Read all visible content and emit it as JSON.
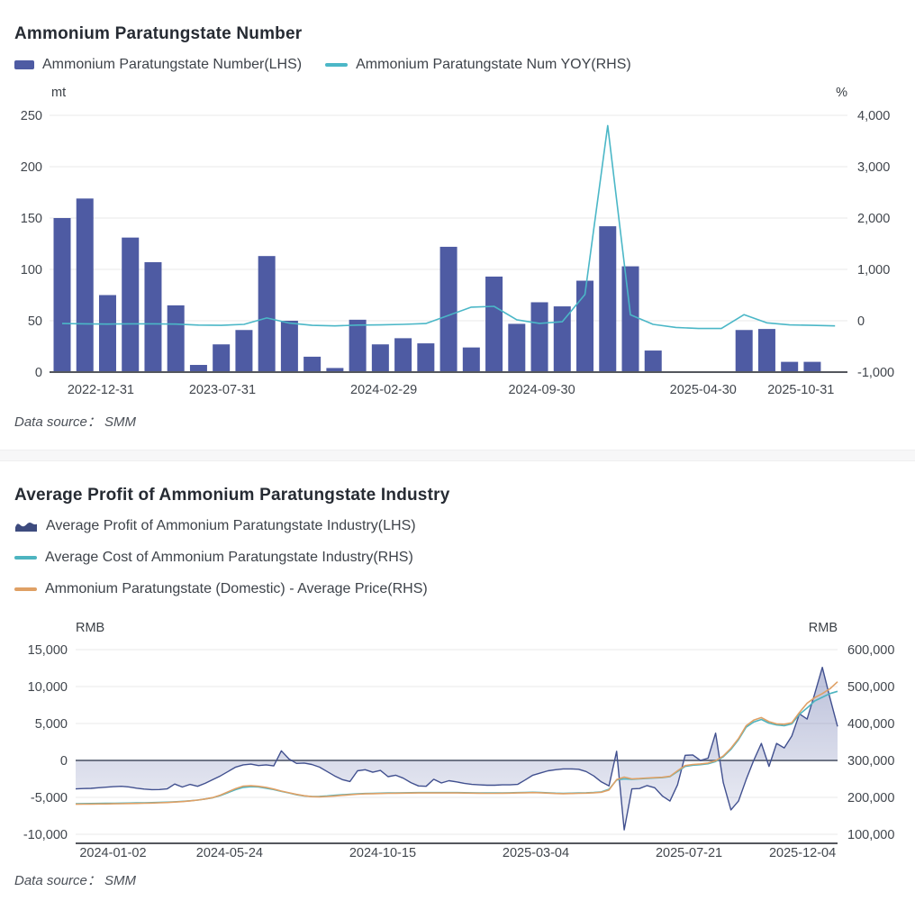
{
  "top_panel": {
    "title": "Ammonium Paratungstate Number",
    "legend": [
      {
        "label": "Ammonium Paratungstate Number(LHS)",
        "type": "bar",
        "color": "#4e5ba3"
      },
      {
        "label": "Ammonium Paratungstate Num YOY(RHS)",
        "type": "line",
        "color": "#4bb7c7"
      }
    ],
    "data_source": "Data source： SMM"
  },
  "bottom_panel": {
    "title": "Average Profit of Ammonium Paratungstate Industry",
    "legend": [
      {
        "label": "Average Profit of Ammonium Paratungstate Industry(LHS)",
        "type": "area",
        "color": "#3d4b7e"
      },
      {
        "label": "Average Cost of Ammonium Paratungstate Industry(RHS)",
        "type": "line",
        "color": "#4db4c0"
      },
      {
        "label": "Ammonium Paratungstate (Domestic) - Average Price(RHS)",
        "type": "line",
        "color": "#dfa065"
      }
    ],
    "data_source": "Data source： SMM"
  },
  "chart_data": [
    {
      "type": "bar",
      "title": "Ammonium Paratungstate Number",
      "left_axis": {
        "unit": "mt",
        "tick_values": [
          250,
          200,
          150,
          100,
          50,
          0
        ],
        "tick_labels": [
          "250",
          "200",
          "150",
          "100",
          "50",
          "0"
        ],
        "range": [
          0,
          250
        ]
      },
      "right_axis": {
        "unit": "%",
        "tick_values": [
          4000,
          3000,
          2000,
          1000,
          0,
          -1000
        ],
        "tick_labels": [
          "4,000",
          "3,000",
          "2,000",
          "1,000",
          "0",
          "-1,000"
        ],
        "range": [
          -1000,
          4000
        ]
      },
      "x_ticks": [
        {
          "i": 1.7,
          "label": "2022-12-31"
        },
        {
          "i": 7.05,
          "label": "2023-07-31"
        },
        {
          "i": 14.15,
          "label": "2024-02-29"
        },
        {
          "i": 21.1,
          "label": "2024-09-30"
        },
        {
          "i": 28.2,
          "label": "2025-04-30"
        },
        {
          "i": 32.5,
          "label": "2025-10-31"
        }
      ],
      "grid": true,
      "legend_position": "top",
      "series": [
        {
          "name": "Ammonium Paratungstate Number(LHS)",
          "type": "bar",
          "axis": "left",
          "color": "#4e5ba3",
          "values": [
            150,
            169,
            75,
            131,
            107,
            65,
            7,
            27,
            41,
            113,
            50,
            15,
            4,
            51,
            27,
            33,
            28,
            122,
            24,
            93,
            47,
            68,
            64,
            89,
            142,
            103,
            21,
            null,
            null,
            null,
            41,
            42,
            10,
            10,
            null
          ]
        },
        {
          "name": "Ammonium Paratungstate Num YOY(RHS)",
          "type": "line",
          "axis": "right",
          "color": "#4bb7c7",
          "values": [
            -55,
            -60,
            -65,
            -60,
            -60,
            -65,
            -85,
            -90,
            -70,
            55,
            -45,
            -90,
            -100,
            -85,
            -80,
            -70,
            -55,
            105,
            265,
            280,
            20,
            -50,
            -20,
            510,
            3800,
            115,
            -70,
            -130,
            -150,
            -150,
            120,
            -40,
            -80,
            -90,
            -100
          ]
        }
      ]
    },
    {
      "type": "area",
      "title": "Average Profit of Ammonium Paratungstate Industry",
      "left_axis": {
        "unit": "RMB",
        "tick_values": [
          15000,
          10000,
          5000,
          0,
          -5000,
          -10000
        ],
        "tick_labels": [
          "15,000",
          "10,000",
          "5,000",
          "0",
          "-5,000",
          "-10,000"
        ],
        "range": [
          -10000,
          15000
        ]
      },
      "right_axis": {
        "unit": "RMB",
        "tick_values": [
          600000,
          500000,
          400000,
          300000,
          200000,
          100000
        ],
        "tick_labels": [
          "600,000",
          "500,000",
          "400,000",
          "300,000",
          "200,000",
          "100,000"
        ],
        "range": [
          100000,
          600000
        ]
      },
      "x_ticks": [
        {
          "i": 4.9,
          "label": "2024-01-02"
        },
        {
          "i": 20.2,
          "label": "2024-05-24"
        },
        {
          "i": 40.3,
          "label": "2024-10-15"
        },
        {
          "i": 60.4,
          "label": "2025-03-04"
        },
        {
          "i": 80.5,
          "label": "2025-07-21"
        },
        {
          "i": 95.4,
          "label": "2025-12-04"
        }
      ],
      "grid": true,
      "legend_position": "top",
      "series": [
        {
          "name": "Average Profit of Ammonium Paratungstate Industry(LHS)",
          "type": "area",
          "axis": "left",
          "color": "#41508f",
          "values": [
            -3850,
            -3800,
            -3780,
            -3700,
            -3620,
            -3550,
            -3500,
            -3580,
            -3750,
            -3880,
            -3950,
            -3940,
            -3850,
            -3200,
            -3600,
            -3250,
            -3500,
            -3100,
            -2600,
            -2100,
            -1500,
            -900,
            -600,
            -500,
            -700,
            -600,
            -750,
            1300,
            200,
            -400,
            -350,
            -550,
            -900,
            -1500,
            -2100,
            -2600,
            -2850,
            -1400,
            -1250,
            -1600,
            -1350,
            -2200,
            -2000,
            -2400,
            -3000,
            -3450,
            -3500,
            -2550,
            -3050,
            -2750,
            -2900,
            -3100,
            -3250,
            -3300,
            -3350,
            -3350,
            -3300,
            -3300,
            -3250,
            -2650,
            -2000,
            -1700,
            -1400,
            -1250,
            -1150,
            -1150,
            -1200,
            -1500,
            -2100,
            -2900,
            -3450,
            1250,
            -9400,
            -3850,
            -3800,
            -3400,
            -3700,
            -4800,
            -5500,
            -3300,
            700,
            750,
            0,
            300,
            3700,
            -3000,
            -6700,
            -5500,
            -2600,
            0,
            2300,
            -800,
            2300,
            1700,
            3300,
            6300,
            5600,
            9000,
            12600,
            8500,
            4600
          ]
        },
        {
          "name": "Average Cost of Ammonium Paratungstate Industry(RHS)",
          "type": "line",
          "axis": "right",
          "color": "#4db4c0",
          "values": [
            183000,
            183200,
            183400,
            183600,
            183800,
            184000,
            184300,
            184600,
            185000,
            185400,
            185800,
            186300,
            187000,
            188000,
            189200,
            190800,
            192800,
            195500,
            199000,
            205000,
            213000,
            221000,
            227000,
            229000,
            228000,
            225000,
            221000,
            216000,
            212000,
            207000,
            204000,
            202500,
            202800,
            204000,
            205500,
            207000,
            208500,
            209500,
            210500,
            211000,
            211500,
            212000,
            212300,
            212500,
            212800,
            213000,
            213000,
            213000,
            213000,
            213000,
            213000,
            212800,
            212500,
            212300,
            212000,
            212000,
            212200,
            212500,
            213000,
            213500,
            214000,
            213500,
            212500,
            211500,
            211000,
            211500,
            212000,
            212500,
            213500,
            215000,
            222000,
            247000,
            250000,
            249000,
            250000,
            251500,
            252500,
            253500,
            256000,
            270000,
            284000,
            287000,
            288500,
            291000,
            297000,
            310000,
            330000,
            356000,
            390000,
            404000,
            411000,
            401000,
            396000,
            394000,
            399000,
            425000,
            442000,
            461000,
            471000,
            481000,
            487000
          ]
        },
        {
          "name": "Ammonium Paratungstate (Domestic) - Average Price(RHS)",
          "type": "line",
          "axis": "right",
          "color": "#dfa065",
          "values": [
            181500,
            181700,
            181900,
            182100,
            182300,
            182600,
            182900,
            183300,
            183700,
            184200,
            184700,
            185300,
            186000,
            187200,
            188600,
            190400,
            192600,
            195500,
            199500,
            206000,
            215000,
            224000,
            230500,
            231500,
            230000,
            227000,
            222500,
            217000,
            212500,
            208000,
            204500,
            202000,
            201500,
            202500,
            204000,
            205500,
            207000,
            208500,
            209500,
            210000,
            210500,
            211000,
            211300,
            211500,
            211800,
            212000,
            212000,
            212000,
            212000,
            212000,
            212000,
            211800,
            211500,
            211300,
            211000,
            211000,
            211200,
            211500,
            212000,
            212500,
            213000,
            212500,
            211500,
            210500,
            210000,
            210500,
            211000,
            211500,
            212500,
            214000,
            220000,
            248000,
            255000,
            250000,
            251000,
            252500,
            253500,
            254500,
            257000,
            272000,
            286000,
            289000,
            290500,
            293000,
            299000,
            312000,
            333000,
            359000,
            394000,
            409000,
            416000,
            405000,
            399000,
            398000,
            402000,
            430000,
            455000,
            470000,
            481000,
            494000,
            513000
          ]
        }
      ]
    }
  ]
}
